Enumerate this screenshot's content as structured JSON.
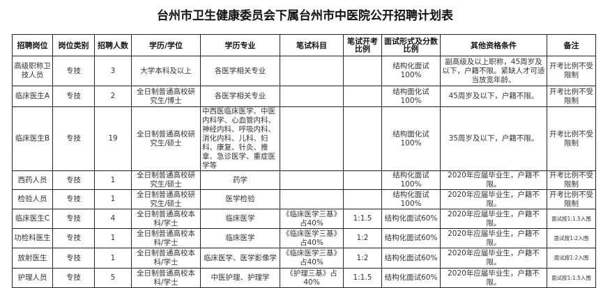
{
  "title": "台州市卫生健康委员会下属台州市中医院公开招聘计划表",
  "headers": [
    "招聘岗位",
    "岗位类别",
    "招聘人数",
    "学历/学位",
    "学历专业",
    "笔试科目",
    "笔试开考比例",
    "面试形式及分数比例",
    "其他资格条件",
    "备注"
  ],
  "rows": [
    [
      "高级职称卫技人员",
      "专技",
      "3",
      "大学本科及以上",
      "各医学相关专业",
      "",
      "",
      "结构化面试100%",
      "副高级及以上职称，45周岁及以下，户籍不限。紧缺人才可适当放宽年龄。",
      "开考比例不受限制"
    ],
    [
      "临床医生A",
      "专技",
      "2",
      "全日制普通高校研究生/博士",
      "各医学相关专业",
      "",
      "",
      "结构面化试100%",
      "45周岁及以下，户籍不限。",
      "开考比例不受限制"
    ],
    [
      "临床医生B",
      "专技",
      "19",
      "全日制普通高校研究生/硕士",
      "中西医临床医学、中医内科学、心血管内科、神经内科、呼吸内科、消化内科、儿科、妇科、康复、针灸、推拿、急诊医学、重症医学等",
      "",
      "",
      "结构面化试100%",
      "35周岁及以下，户籍不限。",
      "开考比例不受限制"
    ],
    [
      "西药人员",
      "专技",
      "1",
      "全日制普通高校研究生/硕士",
      "药学",
      "",
      "",
      "结构化面试100%",
      "2020年应届毕业生，户籍不限。",
      "开考比例不受限制"
    ],
    [
      "检验人员",
      "专技",
      "1",
      "全日制普通高校研究生/硕士",
      "医学检验",
      "",
      "",
      "结构化面试100%",
      "2020年应届毕业生，户籍不限。",
      "开考比例不受限制"
    ],
    [
      "临床医生C",
      "专技",
      "4",
      "全日制普通高校本科/学士",
      "临床医学",
      "《临床医学三基》占40%",
      "1:1.5",
      "结构化面试60%",
      "2020年应届毕业生，户籍不限。",
      "面试按1:1.5入围"
    ],
    [
      "功检科医生",
      "专技",
      "1",
      "全日制普通高校本科/学士",
      "临床医学",
      "《临床医学三基》占40%",
      "1:2",
      "结构化面试60%",
      "2020年应届毕业生，户籍不限。",
      "面试按1:2入围"
    ],
    [
      "放射医生",
      "专技",
      "1",
      "全日制普通高校本科/学士",
      "临床医学、医学影像学",
      "《临床医学三基》占40%",
      "1:2",
      "结构化面试60%",
      "2020年应届毕业生，户籍不限。",
      "面试按1:2入围"
    ],
    [
      "护理人员",
      "专技",
      "5",
      "全日制普通高校本科/学士",
      "中医护理、护理学",
      "《护理三基》占40%",
      "1:1.5",
      "结构化面试60%",
      "2020年应届毕业生，户籍不限。",
      "面试按1:1.5入围"
    ]
  ]
}
